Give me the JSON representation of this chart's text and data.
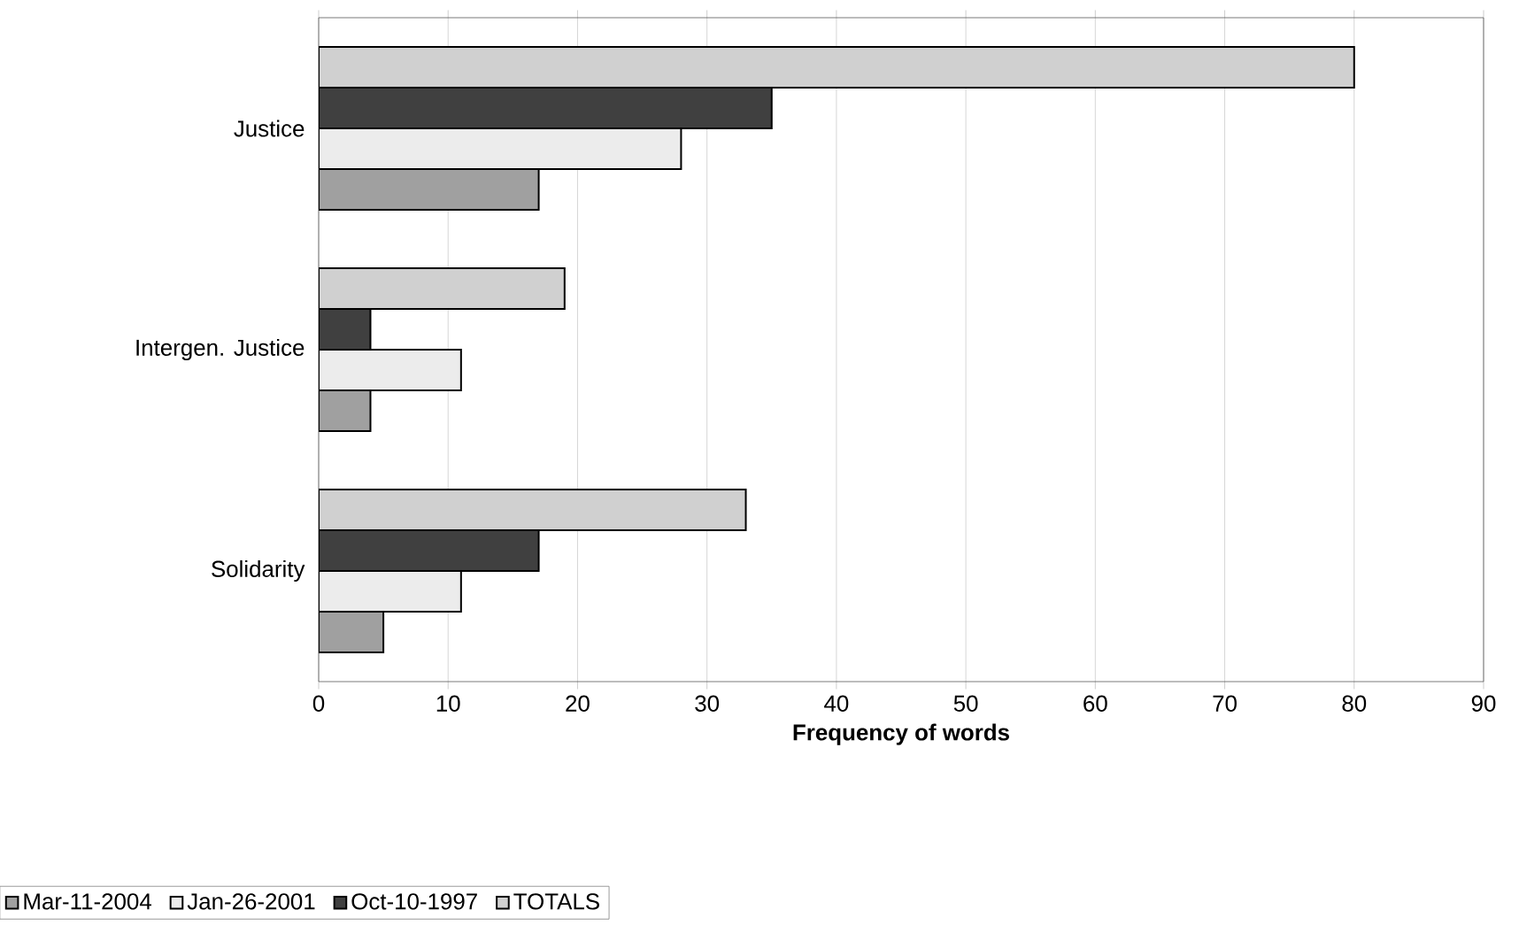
{
  "chart_data": {
    "type": "bar",
    "orientation": "horizontal",
    "xlabel": "Frequency of words",
    "categories": [
      "Justice",
      "Intergen. Justice",
      "Solidarity"
    ],
    "series": [
      {
        "name": "Mar-11-2004",
        "color": "#a0a0a0",
        "values": [
          17,
          4,
          5
        ]
      },
      {
        "name": "Jan-26-2001",
        "color": "#ececec",
        "values": [
          28,
          11,
          11
        ]
      },
      {
        "name": "Oct-10-1997",
        "color": "#404040",
        "values": [
          35,
          4,
          17
        ]
      },
      {
        "name": "TOTALS",
        "color": "#d0d0d0",
        "values": [
          80,
          19,
          33
        ]
      }
    ],
    "xlim": [
      0,
      90
    ],
    "xticks": [
      0,
      10,
      20,
      30,
      40,
      50,
      60,
      70,
      80,
      90
    ],
    "grid": "x",
    "legend": "bottom left"
  }
}
